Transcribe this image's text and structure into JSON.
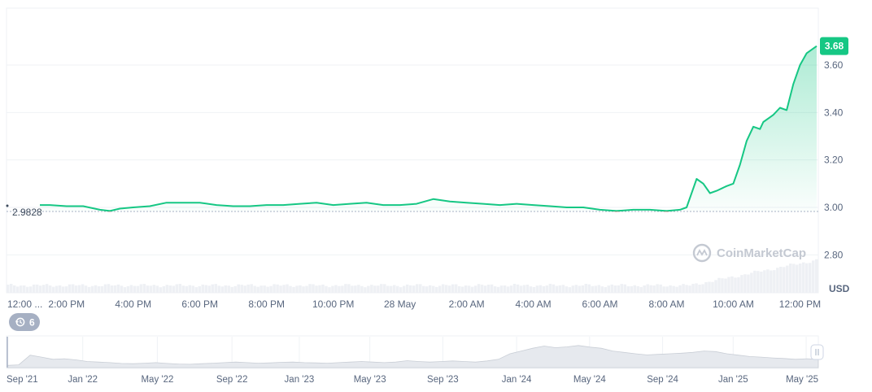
{
  "chart_data": {
    "type": "line",
    "ylim": [
      2.64,
      3.84
    ],
    "yticks": [
      2.8,
      3.0,
      3.2,
      3.4,
      3.6
    ],
    "ytick_labels": [
      "2.80",
      "3.00",
      "3.20",
      "3.40",
      "3.60"
    ],
    "unit_label": "USD",
    "reference": {
      "value": 2.9828,
      "label": "2.9828"
    },
    "current": {
      "value": 3.68,
      "label": "3.68"
    },
    "x_ticks": [
      "12:00 ...",
      "2:00 PM",
      "4:00 PM",
      "6:00 PM",
      "8:00 PM",
      "10:00 PM",
      "28 May",
      "2:00 AM",
      "4:00 AM",
      "6:00 AM",
      "8:00 AM",
      "10:00 AM",
      "12:00 PM"
    ],
    "x_tick_hours": [
      0,
      2,
      4,
      6,
      8,
      10,
      12,
      14,
      16,
      18,
      20,
      22,
      24
    ],
    "x_range_hours": [
      0.2,
      24.55
    ],
    "series": [
      {
        "x_hours": [
          1.2,
          1.5,
          2.0,
          2.5,
          3.0,
          3.3,
          3.6,
          4.0,
          4.5,
          5.0,
          5.5,
          6.0,
          6.5,
          7.0,
          7.5,
          8.0,
          8.5,
          9.0,
          9.5,
          10.0,
          10.5,
          11.0,
          11.5,
          12.0,
          12.5,
          13.0,
          13.5,
          14.0,
          14.5,
          15.0,
          15.5,
          16.0,
          16.5,
          17.0,
          17.5,
          18.0,
          18.5,
          19.0,
          19.5,
          20.0,
          20.4,
          20.6,
          20.9,
          21.1,
          21.3,
          21.5,
          21.8,
          22.0,
          22.2,
          22.4,
          22.6,
          22.8,
          22.9,
          23.1,
          23.2,
          23.4,
          23.6,
          23.8,
          24.0,
          24.2,
          24.4,
          24.5
        ],
        "values": [
          3.01,
          3.01,
          3.005,
          3.005,
          2.99,
          2.985,
          2.995,
          3.0,
          3.005,
          3.02,
          3.02,
          3.02,
          3.01,
          3.005,
          3.005,
          3.01,
          3.01,
          3.015,
          3.02,
          3.01,
          3.015,
          3.02,
          3.01,
          3.01,
          3.015,
          3.035,
          3.025,
          3.02,
          3.015,
          3.01,
          3.015,
          3.01,
          3.005,
          3.0,
          3.0,
          2.99,
          2.985,
          2.99,
          2.99,
          2.985,
          2.99,
          3.0,
          3.12,
          3.1,
          3.06,
          3.07,
          3.09,
          3.1,
          3.18,
          3.28,
          3.34,
          3.33,
          3.36,
          3.38,
          3.39,
          3.42,
          3.41,
          3.52,
          3.6,
          3.65,
          3.67,
          3.68
        ]
      }
    ]
  },
  "watermark": "CoinMarketCap",
  "history_chip": {
    "label": "6",
    "icon": "history-icon"
  },
  "navigator": {
    "labels": [
      "Sep '21",
      "Jan '22",
      "May '22",
      "Sep '22",
      "Jan '23",
      "May '23",
      "Sep '23",
      "Jan '24",
      "May '24",
      "Sep '24",
      "Jan '25",
      "May '25"
    ],
    "label_fractions": [
      0.0,
      0.093,
      0.185,
      0.277,
      0.36,
      0.447,
      0.537,
      0.628,
      0.718,
      0.808,
      0.895,
      0.985
    ],
    "profile": [
      0.08,
      0.1,
      0.45,
      0.38,
      0.3,
      0.32,
      0.28,
      0.22,
      0.2,
      0.18,
      0.15,
      0.14,
      0.16,
      0.18,
      0.15,
      0.13,
      0.12,
      0.14,
      0.16,
      0.18,
      0.2,
      0.18,
      0.16,
      0.17,
      0.19,
      0.2,
      0.18,
      0.17,
      0.16,
      0.18,
      0.2,
      0.22,
      0.2,
      0.18,
      0.2,
      0.25,
      0.22,
      0.2,
      0.22,
      0.24,
      0.22,
      0.2,
      0.24,
      0.3,
      0.5,
      0.6,
      0.7,
      0.78,
      0.72,
      0.75,
      0.8,
      0.74,
      0.7,
      0.6,
      0.55,
      0.5,
      0.46,
      0.48,
      0.5,
      0.52,
      0.55,
      0.6,
      0.58,
      0.5,
      0.45,
      0.4,
      0.38,
      0.35,
      0.33,
      0.3,
      0.32,
      0.3
    ]
  },
  "colors": {
    "up": "#16c784",
    "down": "#ea3943",
    "grid": "#eff2f5",
    "text": "#58667e"
  }
}
